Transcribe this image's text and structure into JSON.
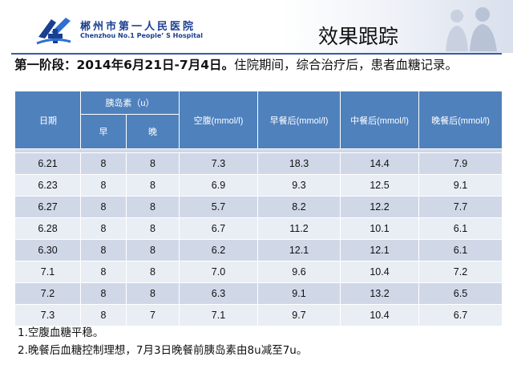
{
  "hospital": {
    "name_cn": "郴州市第一人民医院",
    "name_en": "Chenzhou No.1 People’ S Hospital"
  },
  "slide_title": "效果跟踪",
  "subtitle": {
    "bold_part": "第一阶段：2014年6月21日-7月4日。",
    "rest": "住院期间，综合治疗后，患者血糖记录。"
  },
  "table": {
    "headers": {
      "date": "日期",
      "insulin": "胰岛素（u）",
      "morning": "早",
      "evening": "晚",
      "fasting": "空腹(mmol/l)",
      "after_breakfast": "早餐后(mmol/l)",
      "after_lunch": "中餐后(mmol/l)",
      "after_dinner": "晚餐后(mmol/l)"
    },
    "rows": [
      [
        "6.21",
        "8",
        "8",
        "7.3",
        "18.3",
        "14.4",
        "7.9"
      ],
      [
        "6.23",
        "8",
        "8",
        "6.9",
        "9.3",
        "12.5",
        "9.1"
      ],
      [
        "6.27",
        "8",
        "8",
        "5.7",
        "8.2",
        "12.2",
        "7.7"
      ],
      [
        "6.28",
        "8",
        "8",
        "6.7",
        "11.2",
        "10.1",
        "6.1"
      ],
      [
        "6.30",
        "8",
        "8",
        "6.2",
        "12.1",
        "12.1",
        "6.1"
      ],
      [
        "7.1",
        "8",
        "8",
        "7.0",
        "9.6",
        "10.4",
        "7.2"
      ],
      [
        "7.2",
        "8",
        "8",
        "6.3",
        "9.1",
        "13.2",
        "6.5"
      ],
      [
        "7.3",
        "8",
        "7",
        "7.1",
        "9.7",
        "10.4",
        "6.7"
      ]
    ]
  },
  "notes": [
    "1.空腹血糖平稳。",
    "2.晚餐后血糖控制理想，7月3日晚餐前胰岛素由8u减至7u。"
  ],
  "colors": {
    "header_bg": "#4f81bd",
    "row_odd": "#d0d8e8",
    "row_even": "#e9edf4",
    "brand_blue": "#1b3f8f"
  },
  "icons": [
    "hospital-logo-icon",
    "people-silhouette-art"
  ]
}
